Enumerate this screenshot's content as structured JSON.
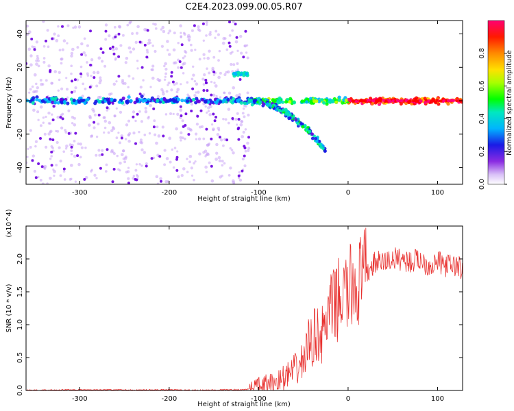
{
  "title": "C2E4.2023.099.00.05.R07",
  "chart_data": [
    {
      "type": "heatmap",
      "xlabel": "Height of straight line (km)",
      "ylabel": "Frequency (Hz)",
      "xlim": [
        -360,
        128
      ],
      "ylim": [
        -50,
        48
      ],
      "xticks": [
        -300,
        -200,
        -100,
        0,
        100
      ],
      "xtick_labels": [
        "-300",
        "-200",
        "-100",
        "0",
        "100"
      ],
      "yticks": [
        -40,
        -20,
        0,
        20,
        40
      ],
      "ytick_labels": [
        "-40",
        "-20",
        "0",
        "20",
        "40"
      ],
      "colorbar": {
        "label": "Normalized spectral amplitude",
        "range": [
          0,
          1
        ],
        "ticks": [
          0.0,
          0.2,
          0.4,
          0.6,
          0.8
        ],
        "tick_labels": [
          "0.0",
          "0.2",
          "0.4",
          "0.6",
          "0.8"
        ],
        "colormap": [
          "#ffffff",
          "#c9a3f5",
          "#6a00e0",
          "#1a1ae6",
          "#00b4ff",
          "#00e8b0",
          "#00ff00",
          "#c8ff00",
          "#ffe000",
          "#ff7a00",
          "#ff0000",
          "#ff0080"
        ]
      },
      "features": {
        "main_band": {
          "frequency_hz": 0,
          "x_range": [
            -360,
            128
          ],
          "note": "strong near-zero-frequency band"
        },
        "upper_blob": {
          "x_range": [
            -128,
            -112
          ],
          "frequency_hz": 16
        },
        "dispersive_branch": {
          "x_range": [
            -112,
            -25
          ],
          "frequency_start_hz": 0,
          "frequency_end_hz": -30
        },
        "low_amplitude_scatter_x_range": [
          -360,
          -110
        ],
        "peak_amplitude_x_range": [
          0,
          128
        ]
      },
      "grid": false
    },
    {
      "type": "line",
      "xlabel": "Height of straight line (km)",
      "ylabel": "SNR (10 * v/v)",
      "y_multiplier": "(x10^4)",
      "xlim": [
        -360,
        128
      ],
      "ylim": [
        0,
        2.5
      ],
      "xticks": [
        -300,
        -200,
        -100,
        0,
        100
      ],
      "xtick_labels": [
        "-300",
        "-200",
        "-100",
        "0",
        "100"
      ],
      "yticks": [
        0.0,
        0.5,
        1.0,
        1.5,
        2.0
      ],
      "ytick_labels": [
        "0.0",
        "0.5",
        "1.0",
        "1.5",
        "2.0"
      ],
      "color": "#e8302e",
      "series": [
        {
          "x": [
            -360,
            -340,
            -320,
            -300,
            -280,
            -260,
            -240,
            -220,
            -200,
            -180,
            -160,
            -140,
            -120,
            -110,
            -100,
            -90,
            -80,
            -70,
            -60,
            -50,
            -45,
            -40,
            -35,
            -30,
            -25,
            -20,
            -15,
            -10,
            -5,
            0,
            5,
            10,
            15,
            20,
            25,
            30,
            40,
            50,
            60,
            70,
            80,
            90,
            100,
            110,
            120,
            128
          ],
          "values": [
            0.005,
            0.005,
            0.01,
            0.01,
            0.01,
            0.01,
            0.005,
            0.01,
            0.01,
            0.005,
            0.005,
            0.01,
            0.01,
            0.02,
            0.04,
            0.08,
            0.12,
            0.2,
            0.3,
            0.45,
            0.7,
            0.75,
            0.9,
            0.8,
            1.0,
            1.2,
            1.3,
            1.4,
            1.45,
            1.5,
            1.6,
            1.6,
            1.7,
            1.75,
            1.85,
            1.95,
            1.95,
            2.0,
            2.0,
            1.95,
            2.0,
            1.9,
            1.95,
            1.9,
            1.9,
            1.85
          ]
        }
      ],
      "grid": false
    }
  ]
}
